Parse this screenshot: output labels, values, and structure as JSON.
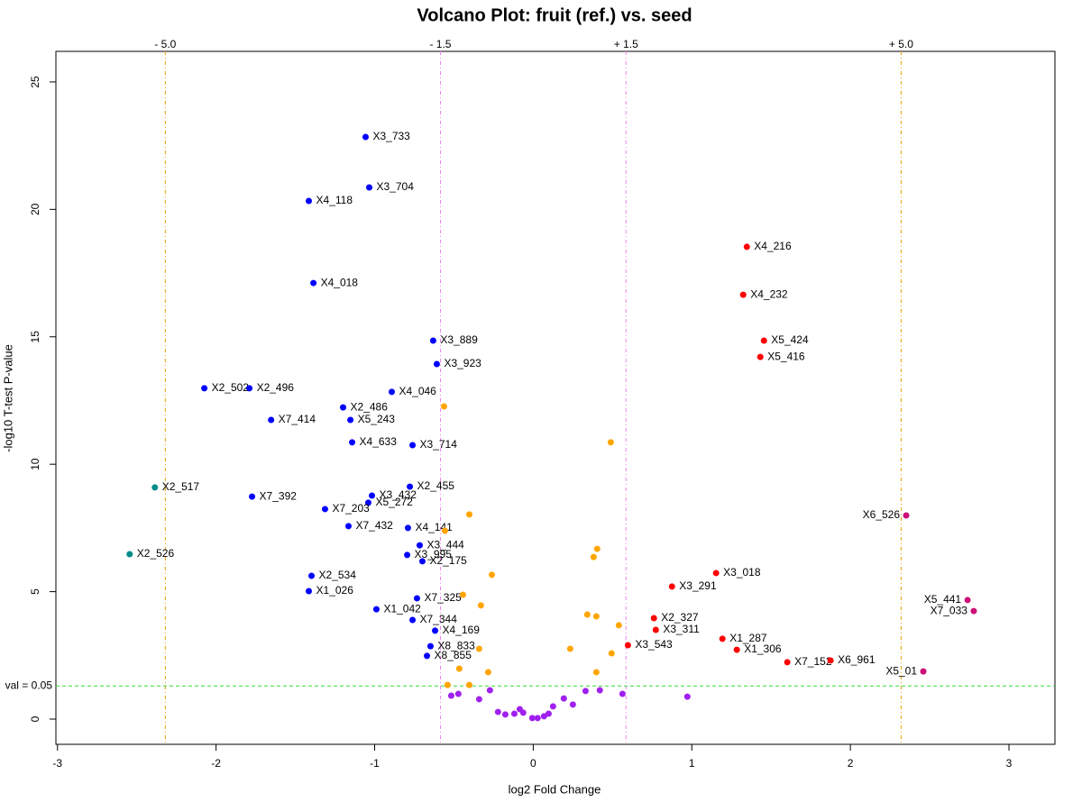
{
  "chart_data": {
    "type": "scatter",
    "title": "Volcano Plot: fruit (ref.) vs. seed",
    "x_label": "log2 Fold Change",
    "y_label": "-log10 T-test P-value",
    "xlim": [
      -3.01,
      3.29
    ],
    "ylim": [
      -0.99,
      26.2
    ],
    "xticks": [
      -3,
      -2,
      -1,
      0,
      1,
      2,
      3
    ],
    "yticks": [
      0,
      5,
      10,
      15,
      20,
      25
    ],
    "fold_lines": [
      {
        "value": -2.32,
        "label": "- 5.0",
        "color": "#e6a100"
      },
      {
        "value": -0.585,
        "label": "- 1.5",
        "color": "#ee82ee"
      },
      {
        "value": 0.585,
        "label": "+ 1.5",
        "color": "#ee82ee"
      },
      {
        "value": 2.32,
        "label": "+ 5.0",
        "color": "#e6a100"
      }
    ],
    "pvalue_line": {
      "value": 1.301,
      "label": "val = 0.05",
      "color": "#33dd33"
    },
    "series": [
      {
        "color": "#0000ff",
        "x": [
          -1.057,
          -1.034,
          -1.415,
          -1.386,
          -0.631,
          -0.608,
          -2.074,
          -1.79,
          -0.892,
          -1.199,
          -1.653,
          -1.153,
          -1.142,
          -0.761,
          -0.778,
          -1.017,
          -1.04,
          -1.773,
          -1.313,
          -1.165,
          -0.79,
          -0.716,
          -0.795,
          -0.699,
          -1.398,
          -1.415,
          -0.733,
          -0.989,
          -0.761,
          -0.619,
          -0.648,
          -0.67
        ],
        "values": [
          22.84,
          20.86,
          20.33,
          17.11,
          14.85,
          13.93,
          12.98,
          12.98,
          12.84,
          12.23,
          11.74,
          11.74,
          10.86,
          10.75,
          9.12,
          8.77,
          8.49,
          8.73,
          8.24,
          7.57,
          7.5,
          6.82,
          6.44,
          6.19,
          5.62,
          5.02,
          4.74,
          4.31,
          3.89,
          3.47,
          2.86,
          2.48
        ],
        "labels": [
          "X3_733",
          "X3_704",
          "X4_118",
          "X4_018",
          "X3_889",
          "X3_923",
          "X2_502",
          "X2_496",
          "X4_046",
          "X2_486",
          "X7_414",
          "X5_243",
          "X4_633",
          "X3_714",
          "X2_455",
          "X3_432",
          "X5_272",
          "X7_392",
          "X7_203",
          "X7_432",
          "X4_141",
          "X3_444",
          "X3_995",
          "X2_175",
          "X2_534",
          "X1_026",
          "X7_325",
          "X1_042",
          "X7_344",
          "X4_169",
          "X8_833",
          "X8_855"
        ]
      },
      {
        "color": "#008b8b",
        "x": [
          -2.386,
          -2.545
        ],
        "values": [
          9.09,
          6.47
        ],
        "labels": [
          "X2_517",
          "X2_526"
        ]
      },
      {
        "color": "#ff0000",
        "x": [
          1.347,
          1.324,
          1.455,
          1.432,
          1.153,
          0.875,
          0.761,
          0.773,
          0.597,
          1.193,
          1.284,
          1.602,
          1.875
        ],
        "values": [
          18.53,
          16.65,
          14.85,
          14.21,
          5.73,
          5.2,
          3.96,
          3.5,
          2.9,
          3.15,
          2.72,
          2.23,
          2.3
        ],
        "labels": [
          "X4_216",
          "X4_232",
          "X5_424",
          "X5_416",
          "X3_018",
          "X3_291",
          "X2_327",
          "X3_311",
          "X3_543",
          "X1_287",
          "X1_306",
          "X7_152",
          "X6_961"
        ]
      },
      {
        "color": "#cd1076",
        "x": [
          2.352,
          2.739,
          2.778,
          2.46
        ],
        "values": [
          7.99,
          4.67,
          4.24,
          1.87
        ],
        "labels": [
          "X6_526",
          "X5_441",
          "X7_033",
          "X5_01"
        ]
      },
      {
        "color": "#ffa500",
        "x": [
          -0.5625,
          0.489,
          -0.403,
          -0.557,
          0.403,
          0.381,
          -0.261,
          -0.443,
          0.341,
          0.398,
          0.54,
          -0.33,
          -0.341,
          0.233,
          0.494,
          -0.466,
          -0.284,
          0.398,
          -0.54,
          -0.403
        ],
        "values": [
          12.27,
          10.86,
          8.03,
          7.39,
          6.68,
          6.36,
          5.66,
          4.88,
          4.1,
          4.03,
          3.68,
          4.46,
          2.76,
          2.76,
          2.58,
          1.98,
          1.84,
          1.84,
          1.34,
          1.34
        ]
      },
      {
        "color": "#a020f0",
        "x": [
          -0.222,
          -0.176,
          -0.119,
          -0.063,
          -0.006,
          0.028,
          0.068,
          0.125,
          0.193,
          0.25,
          0.33,
          0.42,
          0.563,
          -0.341,
          -0.273,
          -0.472,
          -0.517,
          0.972,
          -0.085,
          0.097
        ],
        "values": [
          0.28,
          0.18,
          0.21,
          0.25,
          0.04,
          0.04,
          0.11,
          0.5,
          0.81,
          0.57,
          1.1,
          1.13,
          0.99,
          0.78,
          1.13,
          0.99,
          0.92,
          0.88,
          0.39,
          0.21
        ]
      }
    ]
  }
}
